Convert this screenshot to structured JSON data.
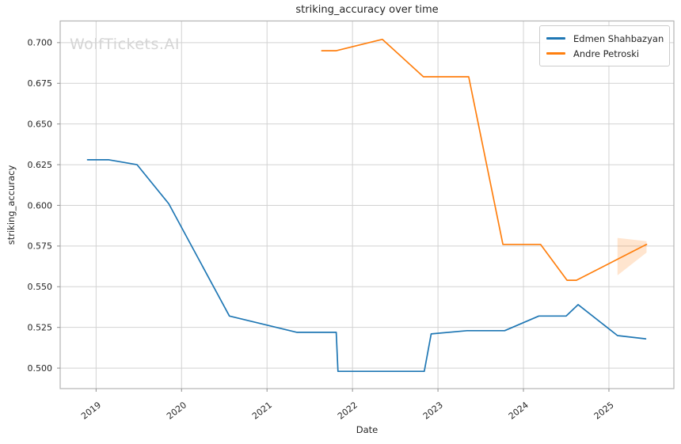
{
  "watermark": "WolfTickets.AI",
  "chart_data": {
    "type": "line",
    "title": "striking_accuracy over time",
    "xlabel": "Date",
    "ylabel": "striking_accuracy",
    "grid": true,
    "legend_position": "upper right",
    "x_ticks": [
      2019,
      2020,
      2021,
      2022,
      2023,
      2024,
      2025
    ],
    "y_ticks": [
      "0.500",
      "0.525",
      "0.550",
      "0.575",
      "0.600",
      "0.625",
      "0.650",
      "0.675",
      "0.700"
    ],
    "x_range": [
      2018.58,
      2025.76
    ],
    "y_range": [
      0.4874,
      0.7133
    ],
    "series": [
      {
        "name": "Edmen Shahbazyan",
        "color": "#1f77b4",
        "points": [
          [
            2018.9,
            0.628
          ],
          [
            2019.15,
            0.628
          ],
          [
            2019.48,
            0.625
          ],
          [
            2019.85,
            0.601
          ],
          [
            2020.56,
            0.532
          ],
          [
            2021.35,
            0.522
          ],
          [
            2021.81,
            0.522
          ],
          [
            2021.83,
            0.498
          ],
          [
            2022.84,
            0.498
          ],
          [
            2022.92,
            0.521
          ],
          [
            2023.34,
            0.523
          ],
          [
            2023.78,
            0.523
          ],
          [
            2024.18,
            0.532
          ],
          [
            2024.5,
            0.532
          ],
          [
            2024.64,
            0.539
          ],
          [
            2025.1,
            0.52
          ],
          [
            2025.43,
            0.518
          ]
        ]
      },
      {
        "name": "Andre Petroski",
        "color": "#ff7f0e",
        "points": [
          [
            2021.64,
            0.695
          ],
          [
            2021.81,
            0.695
          ],
          [
            2022.35,
            0.702
          ],
          [
            2022.83,
            0.679
          ],
          [
            2023.36,
            0.679
          ],
          [
            2023.76,
            0.576
          ],
          [
            2024.2,
            0.576
          ],
          [
            2024.51,
            0.554
          ],
          [
            2024.62,
            0.554
          ],
          [
            2025.44,
            0.576
          ]
        ]
      }
    ],
    "confidence_band": {
      "series": "Andre Petroski",
      "color": "#ff7f0e",
      "opacity": 0.2,
      "polygon": [
        [
          2025.1,
          0.58
        ],
        [
          2025.44,
          0.578
        ],
        [
          2025.44,
          0.571
        ],
        [
          2025.1,
          0.557
        ]
      ]
    }
  }
}
